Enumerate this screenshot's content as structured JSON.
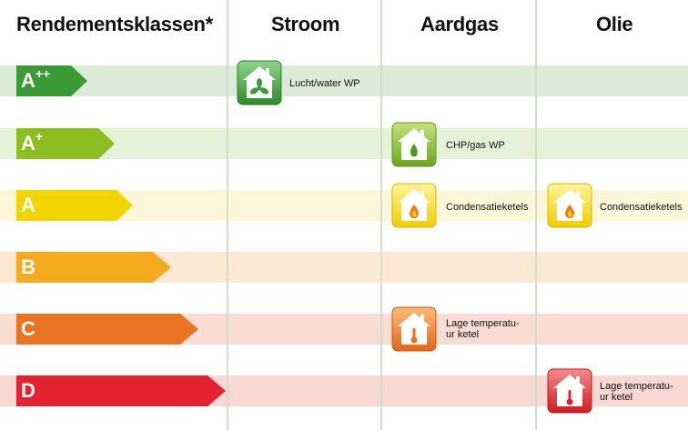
{
  "headers": {
    "classes": "Rendementsklassen*",
    "col1": "Stroom",
    "col2": "Aardgas",
    "col3": "Olie"
  },
  "rows": [
    {
      "class_main": "A",
      "class_sup": "++",
      "color": "#3a9a35",
      "band": "#dcebd8"
    },
    {
      "class_main": "A",
      "class_sup": "+",
      "color": "#8cbd22",
      "band": "#e6f2d8"
    },
    {
      "class_main": "A",
      "class_sup": "",
      "color": "#f2d500",
      "band": "#fdf6d8"
    },
    {
      "class_main": "B",
      "class_sup": "",
      "color": "#f6aa1f",
      "band": "#fbe8d5"
    },
    {
      "class_main": "C",
      "class_sup": "",
      "color": "#e97424",
      "band": "#f9ddd2"
    },
    {
      "class_main": "D",
      "class_sup": "",
      "color": "#e32332",
      "band": "#f7d8d2"
    }
  ],
  "tiles": [
    {
      "icon": "fan-house-icon",
      "color": "#3f9b3a",
      "label1": "Lucht/water WP",
      "label2": ""
    },
    {
      "icon": "flame-house-icon",
      "color": "#7fb42c",
      "label1": "CHP/gas WP",
      "label2": ""
    },
    {
      "icon": "flame-house-icon",
      "color": "#f2d200",
      "label1": "Condensatieketels",
      "label2": ""
    },
    {
      "icon": "flame-house-icon",
      "color": "#f2d200",
      "label1": "Condensatieketels",
      "label2": ""
    },
    {
      "icon": "thermometer-house-icon",
      "color": "#ee7a26",
      "label1": "Lage temperatu-",
      "label2": "ur ketel"
    },
    {
      "icon": "thermometer-house-icon",
      "color": "#e1262e",
      "label1": "Lage temperatu-",
      "label2": "ur ketel"
    }
  ]
}
